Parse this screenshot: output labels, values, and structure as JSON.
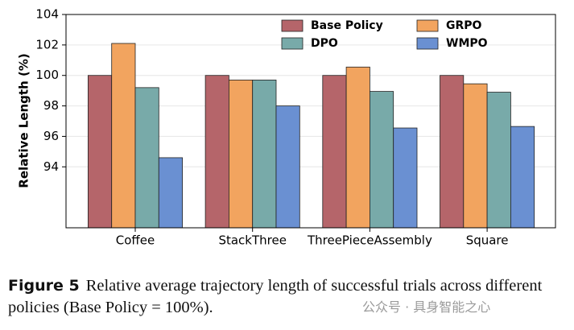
{
  "chart_data": {
    "type": "bar",
    "ylabel": "Relative Length (%)",
    "categories": [
      "Coffee",
      "StackThree",
      "ThreePieceAssembly",
      "Square"
    ],
    "series": [
      {
        "name": "Base Policy",
        "color": "#b5656a",
        "values": [
          100,
          100,
          100,
          100
        ]
      },
      {
        "name": "GRPO",
        "color": "#f2a45f",
        "values": [
          102.1,
          99.7,
          100.55,
          99.45
        ]
      },
      {
        "name": "DPO",
        "color": "#78aaa9",
        "values": [
          99.2,
          99.7,
          98.95,
          98.9
        ]
      },
      {
        "name": "WMPO",
        "color": "#6a90d2",
        "values": [
          94.6,
          98.0,
          96.55,
          96.65
        ]
      }
    ],
    "ylim": [
      90,
      104
    ],
    "yticks": [
      94,
      96,
      98,
      100,
      102,
      104
    ],
    "grid": true,
    "legend": "upper-right"
  },
  "caption": {
    "label": "Figure 5",
    "text": "Relative average trajectory length of successful trials across different policies (Base Policy = 100%)."
  },
  "watermark": "公众号 · 具身智能之心"
}
